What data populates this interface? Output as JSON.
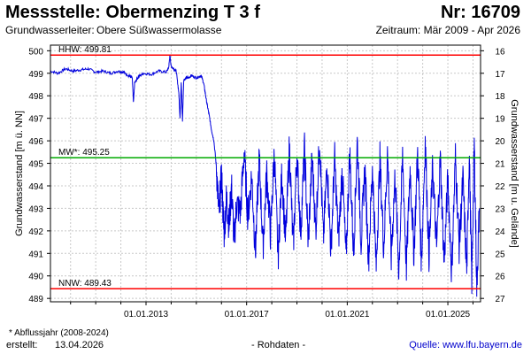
{
  "header": {
    "title": "Messstelle: Obermenzing T 3 f",
    "number": "Nr: 16709",
    "aquifer_label": "Grundwasserleiter:",
    "aquifer_value": "Obere Süßwassermolasse",
    "period": "Zeitraum: Mär 2009 - Apr 2026"
  },
  "footer": {
    "note": "* Abflussjahr (2008-2024)",
    "created_label": "erstellt:",
    "created_date": "13.04.2026",
    "rawdata": "- Rohdaten -",
    "source": "Quelle: www.lfu.bayern.de"
  },
  "colors": {
    "series": "#0000dd",
    "hhw": "#ff0000",
    "nnw": "#ff0000",
    "mw": "#00aa00",
    "grid": "#c8c8c8",
    "frame": "#000000"
  },
  "chart_data": {
    "type": "line",
    "xlabel": "",
    "ylabel": "Grundwasserstand [m ü. NN]",
    "y2label": "Grundwasserstand [m u. Gelände]",
    "xlim": [
      2009.2,
      2026.3
    ],
    "ylim": [
      488.85,
      500.25
    ],
    "y2lim": [
      27.15,
      15.75
    ],
    "grid": true,
    "x_ticks": [
      {
        "x": 2013.0,
        "label": "01.01.2013"
      },
      {
        "x": 2017.0,
        "label": "01.01.2017"
      },
      {
        "x": 2021.0,
        "label": "01.01.2021"
      },
      {
        "x": 2025.0,
        "label": "01.01.2025"
      }
    ],
    "x_minor_ticks": [
      2010.0,
      2011.0,
      2012.0,
      2014.0,
      2015.0,
      2016.0,
      2018.0,
      2019.0,
      2020.0,
      2022.0,
      2023.0,
      2024.0,
      2026.0
    ],
    "y_ticks": [
      489,
      490,
      491,
      492,
      493,
      494,
      495,
      496,
      497,
      498,
      499,
      500
    ],
    "y2_ticks": [
      16,
      17,
      18,
      19,
      20,
      21,
      22,
      23,
      24,
      25,
      26,
      27
    ],
    "reference_lines": [
      {
        "name": "HHW",
        "label": "HHW: 499.81",
        "y": 499.81,
        "color": "#ff0000"
      },
      {
        "name": "MW",
        "label": "MW*: 495.25",
        "y": 495.25,
        "color": "#00aa00"
      },
      {
        "name": "NNW",
        "label": "NNW: 489.43",
        "y": 489.43,
        "color": "#ff0000"
      }
    ],
    "series": [
      {
        "color": "#0000dd",
        "x": [
          2009.2,
          2009.5,
          2009.8,
          2010.1,
          2010.4,
          2010.7,
          2011.0,
          2011.3,
          2011.6,
          2011.9,
          2012.1,
          2012.3,
          2012.45,
          2012.5,
          2012.55,
          2012.7,
          2012.9,
          2013.2,
          2013.5,
          2013.8,
          2013.9,
          2013.95,
          2014.0,
          2014.1,
          2014.2,
          2014.3,
          2014.35,
          2014.4,
          2014.45,
          2014.5,
          2014.6,
          2014.7,
          2014.8,
          2015.0,
          2015.2,
          2015.3,
          2015.4,
          2015.5,
          2015.6,
          2015.7,
          2015.8,
          2015.9,
          2016.0,
          2016.1,
          2016.2,
          2016.3,
          2016.4,
          2016.5,
          2016.6,
          2016.75,
          2016.9,
          2017.05,
          2017.2,
          2017.35,
          2017.5,
          2017.65,
          2017.8,
          2017.95,
          2018.1,
          2018.25,
          2018.4,
          2018.55,
          2018.7,
          2018.85,
          2019.0,
          2019.15,
          2019.3,
          2019.45,
          2019.6,
          2019.75,
          2019.9,
          2020.05,
          2020.2,
          2020.35,
          2020.5,
          2020.65,
          2020.8,
          2020.95,
          2021.1,
          2021.25,
          2021.4,
          2021.55,
          2021.7,
          2021.85,
          2022.0,
          2022.15,
          2022.3,
          2022.45,
          2022.6,
          2022.75,
          2022.9,
          2023.05,
          2023.2,
          2023.35,
          2023.5,
          2023.65,
          2023.8,
          2023.95,
          2024.1,
          2024.25,
          2024.4,
          2024.55,
          2024.7,
          2024.85,
          2025.0,
          2025.15,
          2025.3,
          2025.45,
          2025.6,
          2025.75,
          2025.85,
          2025.95,
          2026.05,
          2026.15,
          2026.25
        ],
        "y": [
          499.1,
          499.0,
          499.2,
          499.1,
          499.15,
          499.2,
          499.05,
          499.1,
          499.0,
          499.1,
          499.05,
          498.9,
          498.8,
          497.7,
          498.6,
          498.85,
          499.0,
          498.95,
          499.1,
          499.05,
          499.25,
          499.8,
          499.3,
          499.2,
          499.1,
          498.2,
          497.0,
          498.6,
          496.9,
          498.7,
          498.8,
          498.8,
          498.9,
          498.8,
          498.9,
          498.5,
          497.8,
          497.2,
          496.5,
          496.0,
          494.8,
          492.7,
          494.5,
          491.8,
          493.5,
          492.2,
          494.0,
          491.5,
          493.2,
          492.8,
          495.5,
          492.6,
          494.5,
          491.0,
          495.3,
          491.3,
          494.6,
          491.8,
          495.5,
          490.8,
          494.6,
          491.5,
          495.8,
          491.2,
          495.4,
          491.9,
          495.6,
          491.4,
          495.3,
          492.0,
          496.2,
          491.6,
          495.0,
          491.1,
          495.2,
          491.5,
          494.8,
          490.8,
          495.5,
          491.0,
          496.0,
          491.5,
          494.8,
          490.7,
          494.9,
          490.4,
          495.2,
          491.2,
          495.5,
          490.8,
          494.5,
          490.2,
          495.3,
          490.4,
          494.8,
          491.0,
          495.5,
          490.6,
          496.0,
          490.9,
          494.9,
          491.2,
          495.3,
          490.5,
          494.3,
          490.1,
          495.3,
          491.3,
          494.3,
          490.2,
          495.5,
          489.8,
          495.9,
          489.5,
          493.0
        ]
      }
    ]
  }
}
